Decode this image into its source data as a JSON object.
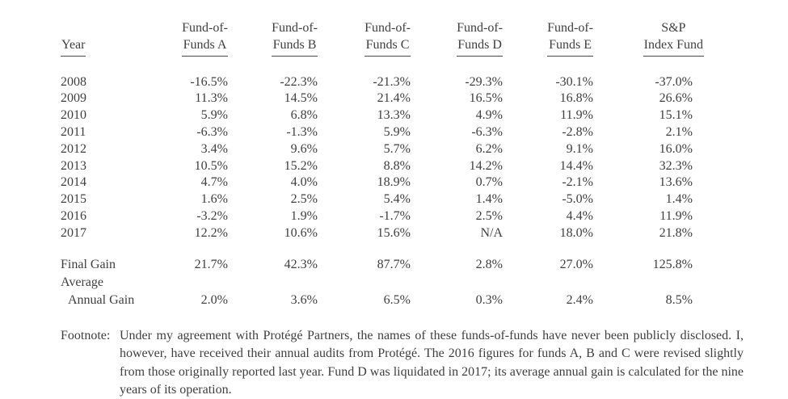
{
  "page": {
    "background_color": "#ffffff",
    "text_color": "#3f3f3f"
  },
  "table": {
    "columns": [
      {
        "line1": "",
        "line2": "Year"
      },
      {
        "line1": "Fund-of-",
        "line2": "Funds A"
      },
      {
        "line1": "Fund-of-",
        "line2": "Funds B"
      },
      {
        "line1": "Fund-of-",
        "line2": "Funds C"
      },
      {
        "line1": "Fund-of-",
        "line2": "Funds D"
      },
      {
        "line1": "Fund-of-",
        "line2": "Funds E"
      },
      {
        "line1": "S&P",
        "line2": "Index Fund"
      }
    ],
    "rows": [
      {
        "year": "2008",
        "values": [
          "-16.5%",
          "-22.3%",
          "-21.3%",
          "-29.3%",
          "-30.1%",
          "-37.0%"
        ]
      },
      {
        "year": "2009",
        "values": [
          "11.3%",
          "14.5%",
          "21.4%",
          "16.5%",
          "16.8%",
          "26.6%"
        ]
      },
      {
        "year": "2010",
        "values": [
          "5.9%",
          "6.8%",
          "13.3%",
          "4.9%",
          "11.9%",
          "15.1%"
        ]
      },
      {
        "year": "2011",
        "values": [
          "-6.3%",
          "-1.3%",
          "5.9%",
          "-6.3%",
          "-2.8%",
          "2.1%"
        ]
      },
      {
        "year": "2012",
        "values": [
          "3.4%",
          "9.6%",
          "5.7%",
          "6.2%",
          "9.1%",
          "16.0%"
        ]
      },
      {
        "year": "2013",
        "values": [
          "10.5%",
          "15.2%",
          "8.8%",
          "14.2%",
          "14.4%",
          "32.3%"
        ]
      },
      {
        "year": "2014",
        "values": [
          "4.7%",
          "4.0%",
          "18.9%",
          "0.7%",
          "-2.1%",
          "13.6%"
        ]
      },
      {
        "year": "2015",
        "values": [
          "1.6%",
          "2.5%",
          "5.4%",
          "1.4%",
          "-5.0%",
          "1.4%"
        ]
      },
      {
        "year": "2016",
        "values": [
          "-3.2%",
          "1.9%",
          "-1.7%",
          "2.5%",
          "4.4%",
          "11.9%"
        ]
      },
      {
        "year": "2017",
        "values": [
          "12.2%",
          "10.6%",
          "15.6%",
          "N/A",
          "18.0%",
          "21.8%"
        ]
      }
    ],
    "final_gain": {
      "label": "Final Gain",
      "values": [
        "21.7%",
        "42.3%",
        "87.7%",
        "2.8%",
        "27.0%",
        "125.8%"
      ]
    },
    "average_annual_gain": {
      "label_line1": "Average",
      "label_line2": "Annual Gain",
      "values": [
        "2.0%",
        "3.6%",
        "6.5%",
        "0.3%",
        "2.4%",
        "8.5%"
      ]
    }
  },
  "footnote": {
    "label": "Footnote:",
    "text": "Under my agreement with Protégé Partners, the names of these funds-of-funds have never been publicly disclosed. I, however, have received their annual audits from Protégé. The 2016 figures for funds A, B and C were revised slightly from those originally reported last year. Fund D was liquidated in 2017; its average annual gain is calculated for the nine years of its operation."
  }
}
